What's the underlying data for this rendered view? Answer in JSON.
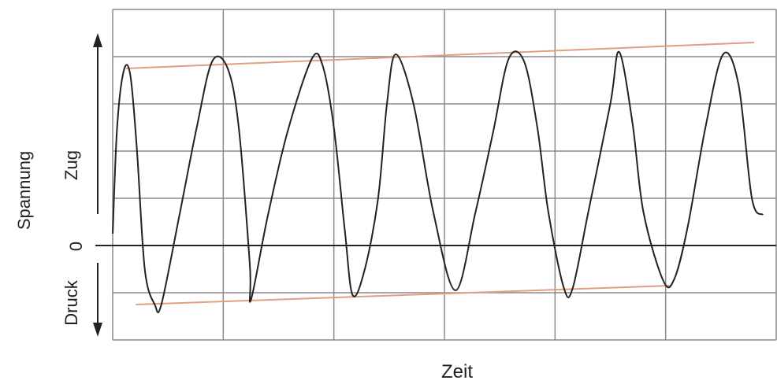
{
  "chart_data": {
    "type": "line",
    "title": "",
    "ylabel": "Spannung",
    "xlabel": "Zeit",
    "tension_label": "Zug",
    "compression_label": "Druck",
    "zero_label": "0",
    "grid": true,
    "xlim": [
      0,
      6
    ],
    "ylim": [
      -2,
      5
    ],
    "colors": {
      "curve": "#222222",
      "envelope": "#e0a080",
      "grid": "#8a8a8a",
      "axis": "#222222"
    },
    "series": [
      {
        "points": [
          [
            0.0,
            0.25
          ],
          [
            0.04,
            2.5
          ],
          [
            0.1,
            3.7
          ],
          [
            0.16,
            3.6
          ],
          [
            0.22,
            2.0
          ],
          [
            0.29,
            -0.5
          ],
          [
            0.38,
            -1.25
          ],
          [
            0.44,
            -1.25
          ],
          [
            0.6,
            0.6
          ],
          [
            0.76,
            2.5
          ],
          [
            0.9,
            3.9
          ],
          [
            1.04,
            3.75
          ],
          [
            1.14,
            2.5
          ],
          [
            1.24,
            -0.4
          ],
          [
            1.25,
            -1.15
          ],
          [
            1.4,
            0.6
          ],
          [
            1.58,
            2.4
          ],
          [
            1.8,
            3.95
          ],
          [
            1.9,
            3.8
          ],
          [
            2.0,
            2.5
          ],
          [
            2.1,
            0.3
          ],
          [
            2.17,
            -1.05
          ],
          [
            2.28,
            -0.5
          ],
          [
            2.4,
            1.0
          ],
          [
            2.48,
            3.0
          ],
          [
            2.56,
            4.05
          ],
          [
            2.72,
            3.0
          ],
          [
            2.9,
            0.7
          ],
          [
            3.1,
            -0.95
          ],
          [
            3.28,
            0.7
          ],
          [
            3.44,
            2.4
          ],
          [
            3.58,
            3.95
          ],
          [
            3.72,
            3.9
          ],
          [
            3.84,
            2.5
          ],
          [
            3.94,
            0.7
          ],
          [
            4.08,
            -0.9
          ],
          [
            4.16,
            -0.9
          ],
          [
            4.3,
            0.7
          ],
          [
            4.5,
            3.0
          ],
          [
            4.58,
            4.1
          ],
          [
            4.7,
            2.6
          ],
          [
            4.8,
            0.7
          ],
          [
            4.98,
            -0.75
          ],
          [
            5.08,
            -0.7
          ],
          [
            5.2,
            0.4
          ],
          [
            5.36,
            2.5
          ],
          [
            5.52,
            4.05
          ],
          [
            5.66,
            3.4
          ],
          [
            5.78,
            1.0
          ],
          [
            5.88,
            0.65
          ]
        ]
      }
    ],
    "envelopes": [
      {
        "points": [
          [
            0.12,
            3.75
          ],
          [
            5.8,
            4.3
          ]
        ]
      },
      {
        "points": [
          [
            0.21,
            -1.25
          ],
          [
            5.05,
            -0.85
          ]
        ]
      }
    ]
  }
}
